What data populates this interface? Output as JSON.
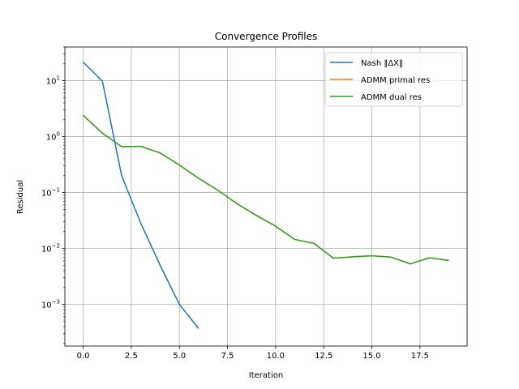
{
  "chart_data": {
    "type": "line",
    "title": "Convergence Profiles",
    "xlabel": "Iteration",
    "ylabel": "Residual",
    "yscale": "log",
    "xlim": [
      -0.95,
      19.95
    ],
    "ylim": [
      0.00018,
      40
    ],
    "x_ticks": [
      0.0,
      2.5,
      5.0,
      7.5,
      10.0,
      12.5,
      15.0,
      17.5
    ],
    "x_tick_labels": [
      "0.0",
      "2.5",
      "5.0",
      "7.5",
      "10.0",
      "12.5",
      "15.0",
      "17.5"
    ],
    "y_ticks": [
      0.001,
      0.01,
      0.1,
      1,
      10
    ],
    "y_tick_labels": [
      {
        "base": "10",
        "exp": "−3"
      },
      {
        "base": "10",
        "exp": "−2"
      },
      {
        "base": "10",
        "exp": "−1"
      },
      {
        "base": "10",
        "exp": "0"
      },
      {
        "base": "10",
        "exp": "1"
      }
    ],
    "grid": true,
    "legend_position": "top-right",
    "series": [
      {
        "name": "Nash ‖ΔX‖",
        "color": "#1f77b4",
        "x": [
          0,
          1,
          2,
          3,
          4,
          5,
          6
        ],
        "y": [
          21.5,
          9.8,
          0.2,
          0.028,
          0.005,
          0.001,
          0.00037
        ]
      },
      {
        "name": "ADMM primal res",
        "color": "#ff7f0e",
        "x": [
          0,
          1,
          2,
          3,
          4,
          5,
          6,
          7,
          8,
          9,
          10,
          11,
          12,
          13,
          14,
          15,
          16,
          17,
          18,
          19
        ],
        "y": [
          2.4,
          1.15,
          0.66,
          0.67,
          0.51,
          0.31,
          0.18,
          0.11,
          0.063,
          0.039,
          0.025,
          0.0145,
          0.0123,
          0.0067,
          0.0071,
          0.0074,
          0.007,
          0.0053,
          0.0068,
          0.0061
        ]
      },
      {
        "name": "ADMM dual res",
        "color": "#2ca02c",
        "x": [
          0,
          1,
          2,
          3,
          4,
          5,
          6,
          7,
          8,
          9,
          10,
          11,
          12,
          13,
          14,
          15,
          16,
          17,
          18,
          19
        ],
        "y": [
          2.4,
          1.15,
          0.66,
          0.67,
          0.51,
          0.31,
          0.18,
          0.11,
          0.063,
          0.039,
          0.025,
          0.0145,
          0.0123,
          0.0067,
          0.0071,
          0.0074,
          0.007,
          0.0053,
          0.0068,
          0.0061
        ]
      }
    ]
  }
}
